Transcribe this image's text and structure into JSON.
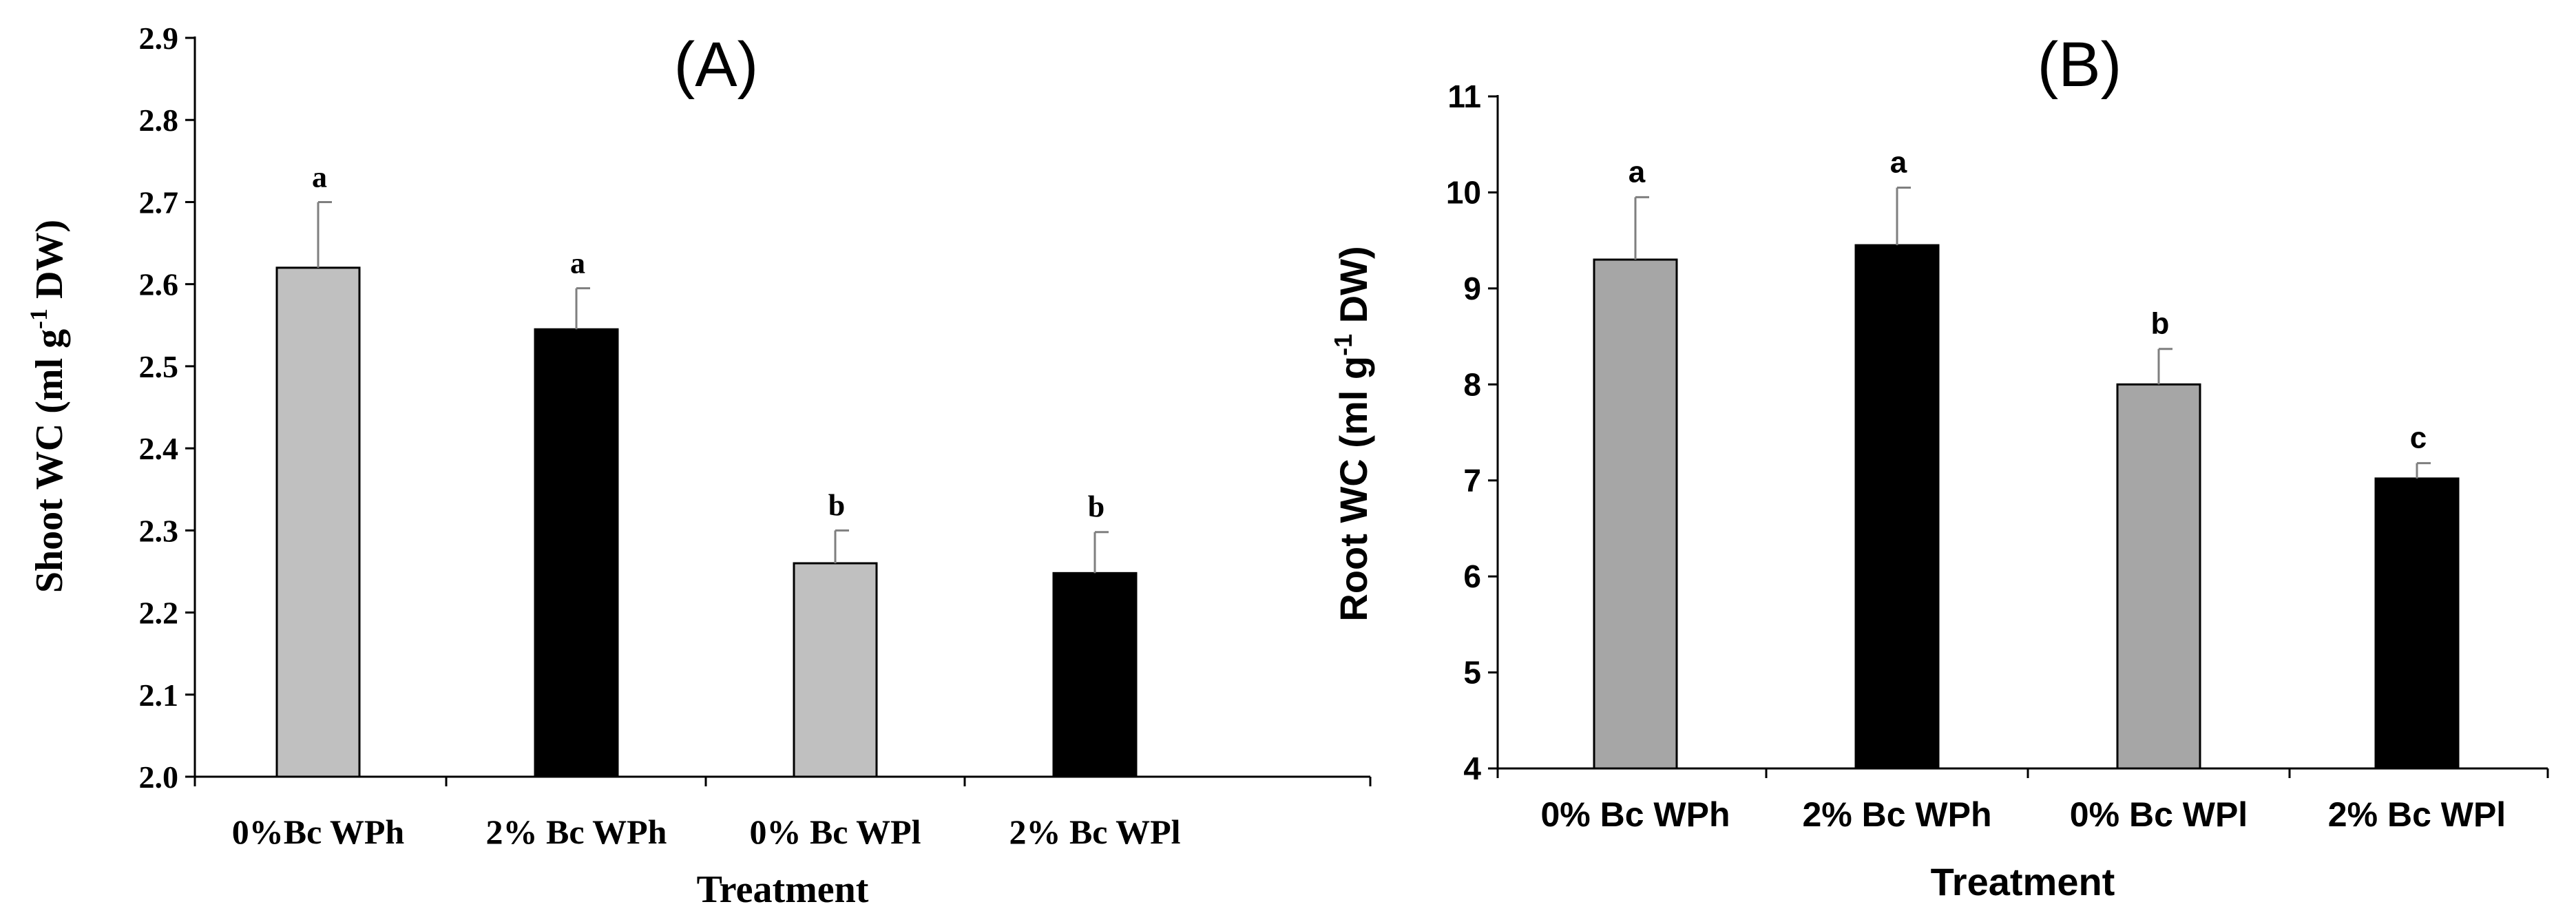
{
  "chart_data": [
    {
      "type": "bar",
      "panel_label": "(A)",
      "title": "",
      "xlabel": "Treatment",
      "ylabel": {
        "prefix": "Shoot WC (ml g",
        "superscript": "-1",
        "suffix": " DW)"
      },
      "ylim": [
        2.0,
        2.9
      ],
      "yticks": [
        "2.0",
        "2.1",
        "2.2",
        "2.3",
        "2.4",
        "2.5",
        "2.6",
        "2.7",
        "2.8",
        "2.9"
      ],
      "categories": [
        "0%Bc WPh",
        "2% Bc WPh",
        "0% Bc WPl",
        "2% Bc WPl"
      ],
      "values": [
        2.62,
        2.545,
        2.26,
        2.248
      ],
      "errors": [
        0.08,
        0.05,
        0.04,
        0.05
      ],
      "significance": [
        "a",
        "a",
        "b",
        "b"
      ],
      "bar_colors": [
        "#c0c0c0",
        "#000000",
        "#c0c0c0",
        "#000000"
      ],
      "grid": false,
      "legend": "none"
    },
    {
      "type": "bar",
      "panel_label": "(B)",
      "title": "",
      "xlabel": "Treatment",
      "ylabel": {
        "prefix": "Root WC (ml g",
        "superscript": "-1",
        "suffix": " DW)"
      },
      "ylim": [
        4,
        11
      ],
      "yticks": [
        "4",
        "5",
        "6",
        "7",
        "8",
        "9",
        "10",
        "11"
      ],
      "categories": [
        "0% Bc WPh",
        "2% Bc WPh",
        "0% Bc WPl",
        "2% Bc WPl"
      ],
      "values": [
        9.3,
        9.45,
        8.0,
        7.02
      ],
      "errors": [
        0.65,
        0.6,
        0.37,
        0.16
      ],
      "significance": [
        "a",
        "a",
        "b",
        "c"
      ],
      "bar_colors": [
        "#a6a6a6",
        "#000000",
        "#a6a6a6",
        "#000000"
      ],
      "grid": false,
      "legend": "none"
    }
  ]
}
